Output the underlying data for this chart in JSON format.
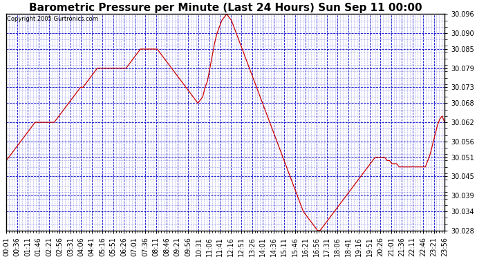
{
  "title": "Barometric Pressure per Minute (Last 24 Hours) Sun Sep 11 00:00",
  "copyright": "Copyright 2005 Gurtronics.com",
  "ylim": [
    30.028,
    30.096
  ],
  "yticks": [
    30.028,
    30.034,
    30.039,
    30.045,
    30.051,
    30.056,
    30.062,
    30.068,
    30.073,
    30.079,
    30.085,
    30.09,
    30.096
  ],
  "line_color": "#cc0000",
  "grid_color": "#0000cc",
  "bg_color": "#ffffff",
  "title_fontsize": 11,
  "copyright_fontsize": 6,
  "tick_fontsize": 7,
  "xtick_labels": [
    "00:01",
    "00:36",
    "01:11",
    "01:46",
    "02:21",
    "02:56",
    "03:31",
    "04:06",
    "04:41",
    "05:16",
    "05:51",
    "06:26",
    "07:01",
    "07:36",
    "08:11",
    "08:46",
    "09:21",
    "09:56",
    "10:31",
    "11:06",
    "11:41",
    "12:16",
    "12:51",
    "13:26",
    "14:01",
    "14:36",
    "15:11",
    "15:46",
    "16:21",
    "16:56",
    "17:31",
    "18:06",
    "18:41",
    "19:16",
    "19:51",
    "20:26",
    "21:01",
    "21:36",
    "22:11",
    "22:46",
    "23:21",
    "23:56"
  ],
  "pressure_data": [
    30.05,
    30.051,
    30.052,
    30.053,
    30.054,
    30.055,
    30.056,
    30.057,
    30.058,
    30.059,
    30.06,
    30.061,
    30.062,
    30.062,
    30.062,
    30.062,
    30.062,
    30.062,
    30.062,
    30.062,
    30.062,
    30.063,
    30.064,
    30.065,
    30.066,
    30.067,
    30.068,
    30.069,
    30.07,
    30.071,
    30.072,
    30.073,
    30.073,
    30.074,
    30.075,
    30.076,
    30.077,
    30.078,
    30.079,
    30.079,
    30.079,
    30.079,
    30.079,
    30.079,
    30.079,
    30.079,
    30.079,
    30.079,
    30.079,
    30.079,
    30.079,
    30.08,
    30.081,
    30.082,
    30.083,
    30.084,
    30.085,
    30.085,
    30.085,
    30.085,
    30.085,
    30.085,
    30.085,
    30.085,
    30.084,
    30.083,
    30.082,
    30.081,
    30.08,
    30.079,
    30.078,
    30.077,
    30.076,
    30.075,
    30.074,
    30.073,
    30.072,
    30.071,
    30.07,
    30.069,
    30.068,
    30.069,
    30.07,
    30.073,
    30.075,
    30.079,
    30.083,
    30.087,
    30.09,
    30.092,
    30.094,
    30.095,
    30.096,
    30.095,
    30.094,
    30.092,
    30.09,
    30.088,
    30.086,
    30.084,
    30.082,
    30.08,
    30.078,
    30.076,
    30.074,
    30.072,
    30.07,
    30.068,
    30.066,
    30.064,
    30.062,
    30.06,
    30.058,
    30.056,
    30.054,
    30.052,
    30.05,
    30.048,
    30.046,
    30.044,
    30.042,
    30.04,
    30.038,
    30.036,
    30.034,
    30.033,
    30.032,
    30.031,
    30.03,
    30.029,
    30.028,
    30.028,
    30.029,
    30.03,
    30.031,
    30.032,
    30.033,
    30.034,
    30.035,
    30.036,
    30.037,
    30.038,
    30.039,
    30.04,
    30.041,
    30.042,
    30.043,
    30.044,
    30.045,
    30.046,
    30.047,
    30.048,
    30.049,
    30.05,
    30.051,
    30.051,
    30.051,
    30.051,
    30.051,
    30.05,
    30.05,
    30.049,
    30.049,
    30.049,
    30.048,
    30.048,
    30.048,
    30.048,
    30.048,
    30.048,
    30.048,
    30.048,
    30.048,
    30.048,
    30.048,
    30.048,
    30.05,
    30.052,
    30.055,
    30.058,
    30.061,
    30.063,
    30.064,
    30.062
  ]
}
